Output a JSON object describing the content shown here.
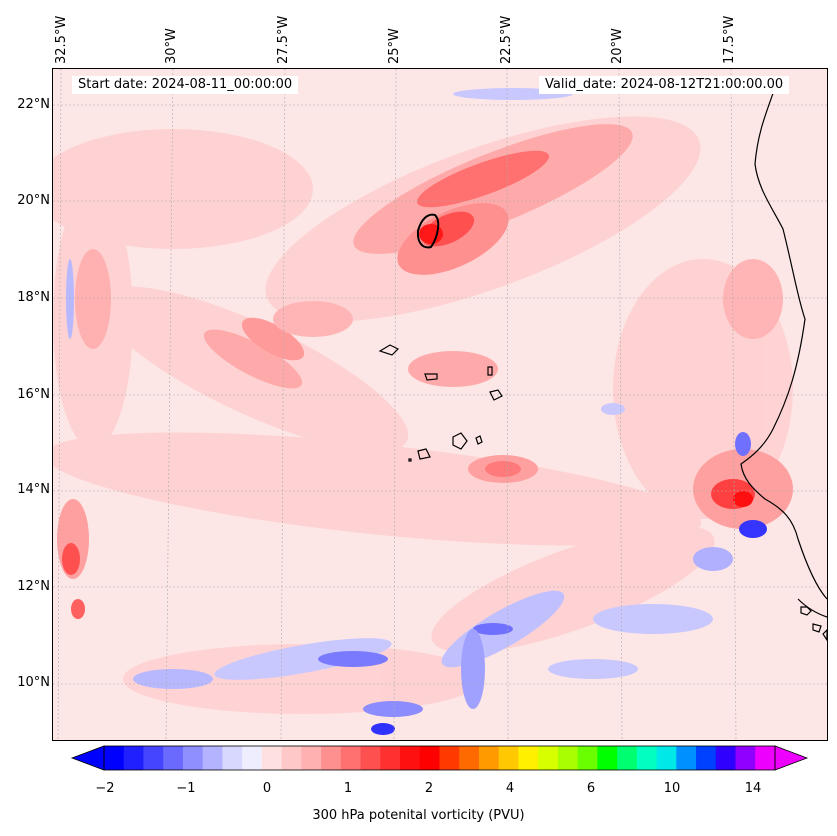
{
  "map": {
    "start_label": "Start date: 2024-08-11_00:00:00",
    "valid_label": "Valid_date: 2024-08-12T21:00:00.00",
    "latitudes": [
      "22°N",
      "20°N",
      "18°N",
      "16°N",
      "14°N",
      "12°N",
      "10°N"
    ],
    "longitudes": [
      "32.5°W",
      "30°W",
      "27.5°W",
      "25°W",
      "22.5°W",
      "20°W",
      "17.5°W"
    ]
  },
  "colorbar": {
    "label": "300 hPa potenital vorticity (PVU)",
    "ticks": [
      "−2",
      "−1",
      "0",
      "1",
      "2",
      "4",
      "6",
      "10",
      "14"
    ],
    "colors": [
      "#0000ff",
      "#2020ff",
      "#4545ff",
      "#6a6aff",
      "#8f8fff",
      "#b3b3ff",
      "#d8d8ff",
      "#eeeeff",
      "#ffe0e0",
      "#ffc8c8",
      "#ffb0b0",
      "#ff9090",
      "#ff7070",
      "#ff5050",
      "#ff3030",
      "#ff1010",
      "#ff0000",
      "#ff3a00",
      "#ff6a00",
      "#ff9a00",
      "#ffc800",
      "#fff000",
      "#d8ff00",
      "#a8ff00",
      "#6aff00",
      "#00ff00",
      "#00ff70",
      "#00ffc0",
      "#00e8e8",
      "#0090ff",
      "#0040ff",
      "#3000ff",
      "#9000ff",
      "#ee00ff"
    ]
  }
}
